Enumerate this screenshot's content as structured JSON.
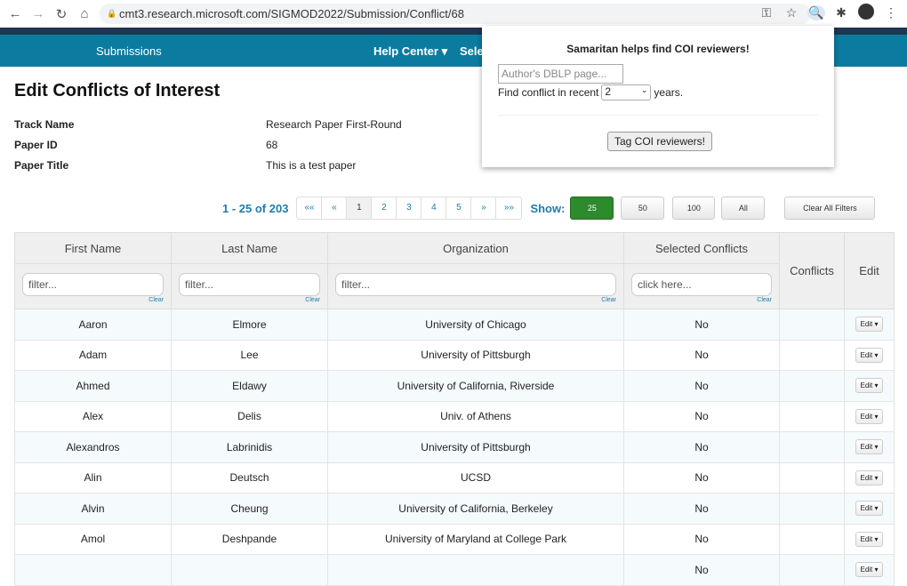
{
  "browser": {
    "url": "cmt3.research.microsoft.com/SIGMOD2022/Submission/Conflict/68"
  },
  "nav": {
    "submissions": "Submissions",
    "help": "Help Center ▾",
    "select": "Sele"
  },
  "page": {
    "title": "Edit Conflicts of Interest",
    "info": [
      {
        "label": "Track Name",
        "value": "Research Paper First-Round"
      },
      {
        "label": "Paper ID",
        "value": "68"
      },
      {
        "label": "Paper Title",
        "value": "This is a test paper"
      }
    ]
  },
  "pager": {
    "count": "1 - 25 of 203",
    "pages": [
      "««",
      "«",
      "1",
      "2",
      "3",
      "4",
      "5",
      "»",
      "»»"
    ],
    "show_label": "Show:",
    "sizes": [
      "25",
      "50",
      "100",
      "All"
    ],
    "selected_size": "25",
    "clear_filters": "Clear All Filters"
  },
  "table": {
    "headers": [
      "First Name",
      "Last Name",
      "Organization",
      "Selected Conflicts",
      "Conflicts",
      "Edit"
    ],
    "filters": [
      "filter...",
      "filter...",
      "filter...",
      "click here..."
    ],
    "clear": "Clear",
    "edit_label": "Edit ▾",
    "rows": [
      [
        "Aaron",
        "Elmore",
        "University of Chicago",
        "No"
      ],
      [
        "Adam",
        "Lee",
        "University of Pittsburgh",
        "No"
      ],
      [
        "Ahmed",
        "Eldawy",
        "University of California, Riverside",
        "No"
      ],
      [
        "Alex",
        "Delis",
        "Univ. of Athens",
        "No"
      ],
      [
        "Alexandros",
        "Labrinidis",
        "University of Pittsburgh",
        "No"
      ],
      [
        "Alin",
        "Deutsch",
        "UCSD",
        "No"
      ],
      [
        "Alvin",
        "Cheung",
        "University of California, Berkeley",
        "No"
      ],
      [
        "Amol",
        "Deshpande",
        "University of Maryland at College Park",
        "No"
      ],
      [
        "",
        "",
        "",
        "No"
      ]
    ]
  },
  "popup": {
    "title": "Samaritan helps find COI reviewers!",
    "input_placeholder": "Author's DBLP page...",
    "find_prefix": "Find conflict in recent",
    "years_value": "2",
    "find_suffix": "years.",
    "button": "Tag COI reviewers!"
  },
  "colors": {
    "nav": "#0b7ca0",
    "accent": "#1f7cad",
    "selected": "#2d8a2d"
  }
}
